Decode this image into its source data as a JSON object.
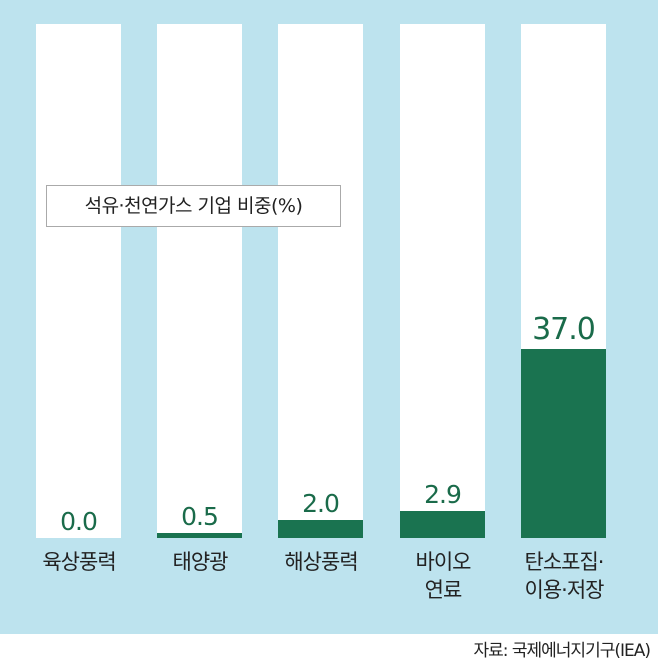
{
  "chart_data": {
    "type": "bar",
    "title": "석유·천연가스 기업 비중(%)",
    "categories": [
      "육상풍력",
      "태양광",
      "해상풍력",
      "바이오\n연료",
      "탄소포집·\n이용·저장"
    ],
    "values": [
      0.0,
      0.5,
      2.0,
      2.9,
      37.0
    ],
    "value_labels": [
      "0.0",
      "0.5",
      "2.0",
      "2.9",
      "37.0"
    ],
    "ylim": [
      0,
      100
    ],
    "legend": "top-left",
    "colors": {
      "bar": "#1a7350",
      "background": "#bde3ee",
      "column": "#ffffff"
    }
  },
  "source": "자료: 국제에너지기구(IEA)"
}
